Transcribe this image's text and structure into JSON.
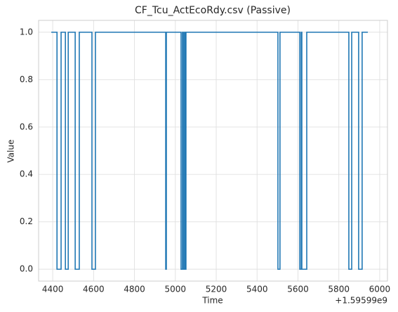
{
  "chart_data": {
    "type": "line",
    "drawstyle": "steps-post",
    "title": "CF_Tcu_ActEcoRdy.csv (Passive)",
    "xlabel": "Time",
    "ylabel": "Value",
    "x_offset_label": "+1.59599e9",
    "grid": true,
    "xlim": [
      4331,
      6038
    ],
    "xticks": [
      4400,
      4600,
      4800,
      5000,
      5200,
      5400,
      5600,
      5800,
      6000
    ],
    "ylim": [
      -0.05,
      1.05
    ],
    "yticks": [
      {
        "value": 0,
        "label": "0.0"
      },
      {
        "value": 0.2,
        "label": "0.2"
      },
      {
        "value": 0.4,
        "label": "0.4"
      },
      {
        "value": 0.6,
        "label": "0.6"
      },
      {
        "value": 0.8,
        "label": "0.8"
      },
      {
        "value": 1,
        "label": "1.0"
      }
    ],
    "series": [
      {
        "color": "#1f77b4",
        "x": [
          4393,
          4421,
          4441,
          4462,
          4476,
          4510,
          4530,
          4592,
          4609,
          4953,
          4956,
          5028,
          5035,
          5039,
          5045,
          5049,
          5052,
          5502,
          5512,
          5609,
          5616,
          5619,
          5643,
          5849,
          5863,
          5897,
          5914,
          5942
        ],
        "values": [
          1,
          0,
          1,
          0,
          1,
          0,
          1,
          0,
          1,
          0,
          1,
          0,
          1,
          0,
          1,
          0,
          1,
          0,
          1,
          0,
          1,
          0,
          1,
          0,
          1,
          0,
          1,
          1
        ]
      }
    ]
  }
}
